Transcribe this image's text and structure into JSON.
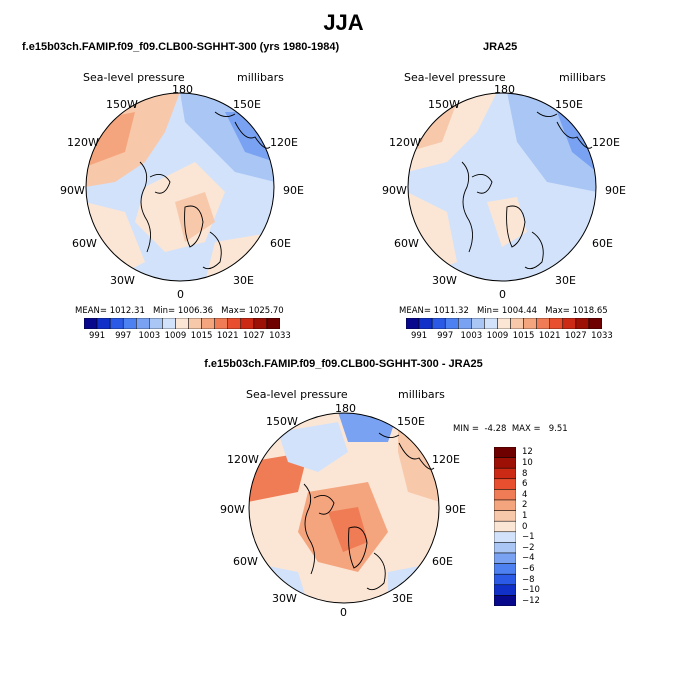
{
  "title": "JJA",
  "panels": [
    {
      "id": "model",
      "title": "f.e15b03ch.FAMIP.f09_f09.CLB00-SGHHT-300 (yrs 1980-1984)",
      "variable": "Sea-level pressure",
      "units": "millibars",
      "lon_labels": [
        "180",
        "150E",
        "120E",
        "90E",
        "60E",
        "30E",
        "0",
        "30W",
        "60W",
        "90W",
        "120W",
        "150W"
      ],
      "stats": {
        "mean_label": "MEAN=",
        "mean": "1012.31",
        "min_label": "Min=",
        "min": "1006.36",
        "max_label": "Max=",
        "max": "1025.70"
      }
    },
    {
      "id": "obs",
      "title": "JRA25",
      "variable": "Sea-level pressure",
      "units": "millibars",
      "lon_labels": [
        "180",
        "150E",
        "120E",
        "90E",
        "60E",
        "30E",
        "0",
        "30W",
        "60W",
        "90W",
        "120W",
        "150W"
      ],
      "stats": {
        "mean_label": "MEAN=",
        "mean": "1011.32",
        "min_label": "Min=",
        "min": "1004.44",
        "max_label": "Max=",
        "max": "1018.65"
      }
    },
    {
      "id": "diff",
      "title": "f.e15b03ch.FAMIP.f09_f09.CLB00-SGHHT-300 - JRA25",
      "variable": "Sea-level pressure",
      "units": "millibars",
      "lon_labels": [
        "180",
        "150E",
        "120E",
        "90E",
        "60E",
        "30E",
        "0",
        "30W",
        "60W",
        "90W",
        "120W",
        "150W"
      ],
      "stats": {
        "min_label": "MIN =",
        "min": "-4.28",
        "max_label": "MAX =",
        "max": "9.51"
      }
    }
  ],
  "colorbar_abs": {
    "colors": [
      "#08088c",
      "#1030c8",
      "#2a5ae6",
      "#4d80f0",
      "#7aa2f2",
      "#a9c6f5",
      "#d2e2fa",
      "#fbe6d6",
      "#f8c8aa",
      "#f5a57e",
      "#f07c55",
      "#e84f2e",
      "#cc2a14",
      "#9c1006",
      "#6e0000"
    ],
    "tick_labels": [
      "991",
      "997",
      "1003",
      "1009",
      "1015",
      "1021",
      "1027",
      "1033"
    ]
  },
  "colorbar_diff": {
    "colors": [
      "#08088c",
      "#1030c8",
      "#2a5ae6",
      "#4d80f0",
      "#7aa2f2",
      "#a9c6f5",
      "#d2e2fa",
      "#fbe6d6",
      "#f8c8aa",
      "#f5a57e",
      "#f07c55",
      "#e84f2e",
      "#cc2a14",
      "#9c1006",
      "#6e0000"
    ],
    "tick_labels": [
      "12",
      "10",
      "8",
      "6",
      "4",
      "2",
      "1",
      "0",
      "−1",
      "−2",
      "−4",
      "−6",
      "−8",
      "−10",
      "−12"
    ]
  },
  "fill_colors": {
    "background": "#d2e2fa",
    "low": "#a9c6f5",
    "lower": "#7aa2f2",
    "lowest": "#4d80f0",
    "high": "#fbe6d6",
    "higher": "#f8c8aa",
    "highest": "#f5a57e",
    "peak": "#f07c55"
  }
}
